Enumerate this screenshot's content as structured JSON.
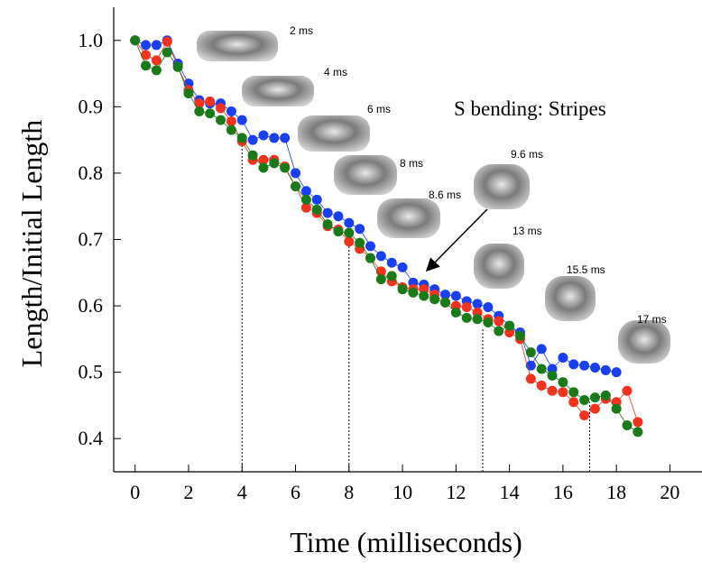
{
  "chart_data": {
    "type": "scatter",
    "x_label": "Time (milliseconds)",
    "y_label": "Length/Initial Length",
    "annotation_title": "S bending: Stripes",
    "annotations": [
      "2 ms",
      "4 ms",
      "6 ms",
      "8 ms",
      "8.6 ms",
      "9.6 ms",
      "13 ms",
      "15.5 ms",
      "17 ms"
    ],
    "xlim": [
      -0.8,
      21.2
    ],
    "ylim": [
      0.35,
      1.05
    ],
    "xticks": [
      0,
      2,
      4,
      6,
      8,
      10,
      12,
      14,
      16,
      18,
      20
    ],
    "yticks": [
      0.4,
      0.5,
      0.6,
      0.7,
      0.8,
      0.9,
      {
        "value": 1,
        "label": "1.0"
      }
    ],
    "vlines": [
      {
        "x": 4,
        "y": 0.845
      },
      {
        "x": 8,
        "y": 0.697
      },
      {
        "x": 13,
        "y": 0.565
      },
      {
        "x": 17,
        "y": 0.455
      }
    ],
    "series": [
      {
        "color": "#1a3ff0",
        "x": [
          0,
          0.4,
          0.8,
          1.2,
          1.6,
          2.0,
          2.4,
          2.8,
          3.2,
          3.6,
          4.0,
          4.4,
          4.8,
          5.2,
          5.6,
          6.0,
          6.4,
          6.8,
          7.2,
          7.6,
          8.0,
          8.4,
          8.8,
          9.2,
          9.6,
          10.0,
          10.4,
          10.8,
          11.2,
          11.6,
          12.0,
          12.4,
          12.8,
          13.2,
          13.6,
          14.0,
          14.4,
          14.8,
          15.2,
          15.6,
          16.0,
          16.4,
          16.8,
          17.2,
          17.6,
          18.0
        ],
        "values": [
          1.0,
          0.993,
          0.993,
          1.0,
          0.965,
          0.935,
          0.91,
          0.905,
          0.905,
          0.893,
          0.88,
          0.85,
          0.857,
          0.853,
          0.853,
          0.8,
          0.773,
          0.76,
          0.74,
          0.735,
          0.725,
          0.716,
          0.69,
          0.675,
          0.665,
          0.658,
          0.635,
          0.632,
          0.625,
          0.617,
          0.615,
          0.607,
          0.603,
          0.598,
          0.585,
          0.57,
          0.56,
          0.51,
          0.535,
          0.505,
          0.522,
          0.512,
          0.51,
          0.507,
          0.503,
          0.5
        ]
      },
      {
        "color": "#f0321e",
        "x": [
          0,
          0.4,
          0.8,
          1.2,
          1.6,
          2.0,
          2.4,
          2.8,
          3.2,
          3.6,
          4.0,
          4.4,
          4.8,
          5.2,
          5.6,
          6.0,
          6.4,
          6.8,
          7.2,
          7.6,
          8.0,
          8.4,
          8.8,
          9.2,
          9.6,
          10.0,
          10.4,
          10.8,
          11.2,
          11.6,
          12.0,
          12.4,
          12.8,
          13.2,
          13.6,
          14.0,
          14.4,
          14.8,
          15.2,
          15.6,
          16.0,
          16.4,
          16.8,
          17.2,
          17.6,
          18.0,
          18.4,
          18.8
        ],
        "values": [
          1.0,
          0.978,
          0.97,
          0.998,
          0.96,
          0.925,
          0.905,
          0.908,
          0.898,
          0.878,
          0.848,
          0.82,
          0.82,
          0.82,
          0.81,
          0.78,
          0.748,
          0.74,
          0.72,
          0.715,
          0.697,
          0.686,
          0.672,
          0.652,
          0.637,
          0.628,
          0.625,
          0.625,
          0.617,
          0.605,
          0.6,
          0.598,
          0.59,
          0.58,
          0.577,
          0.56,
          0.55,
          0.49,
          0.48,
          0.472,
          0.47,
          0.455,
          0.435,
          0.445,
          0.46,
          0.455,
          0.472,
          0.425
        ]
      },
      {
        "color": "#1a7a1a",
        "x": [
          0,
          0.4,
          0.8,
          1.2,
          1.6,
          2.0,
          2.4,
          2.8,
          3.2,
          3.6,
          4.0,
          4.4,
          4.8,
          5.2,
          5.6,
          6.0,
          6.4,
          6.8,
          7.2,
          7.6,
          8.0,
          8.4,
          8.8,
          9.2,
          9.6,
          10.0,
          10.4,
          10.8,
          11.2,
          11.6,
          12.0,
          12.4,
          12.8,
          13.2,
          13.6,
          14.0,
          14.4,
          14.8,
          15.2,
          15.6,
          16.0,
          16.4,
          16.8,
          17.2,
          17.6,
          18.0,
          18.4,
          18.8
        ],
        "values": [
          1.0,
          0.962,
          0.955,
          0.982,
          0.96,
          0.92,
          0.893,
          0.89,
          0.88,
          0.865,
          0.853,
          0.827,
          0.808,
          0.815,
          0.808,
          0.78,
          0.76,
          0.745,
          0.723,
          0.712,
          0.71,
          0.695,
          0.672,
          0.64,
          0.645,
          0.625,
          0.62,
          0.615,
          0.61,
          0.605,
          0.59,
          0.582,
          0.58,
          0.575,
          0.562,
          0.57,
          0.555,
          0.53,
          0.505,
          0.495,
          0.485,
          0.47,
          0.458,
          0.462,
          0.465,
          0.445,
          0.42,
          0.41
        ]
      }
    ]
  }
}
